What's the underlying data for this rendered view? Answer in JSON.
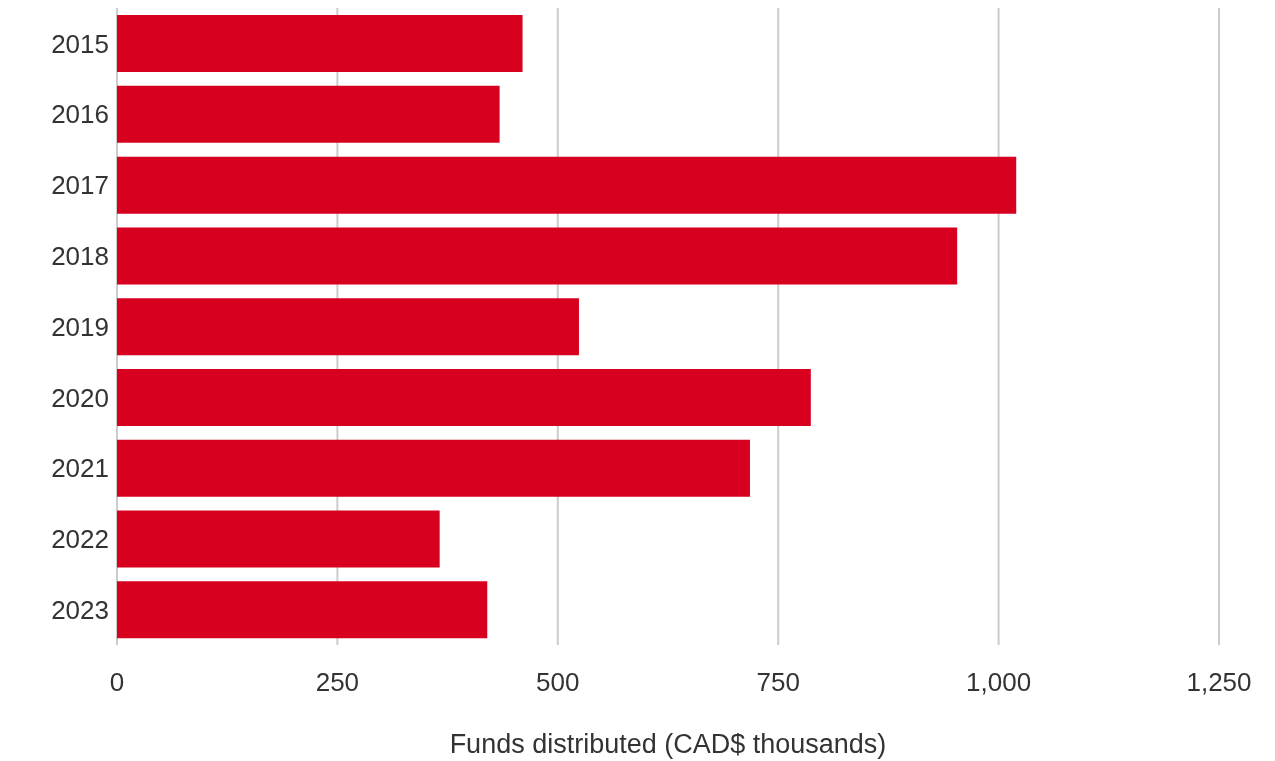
{
  "chart_data": {
    "type": "bar",
    "orientation": "horizontal",
    "xlabel": "Funds distributed (CAD$ thousands)",
    "categories": [
      "2015",
      "2016",
      "2017",
      "2018",
      "2019",
      "2020",
      "2021",
      "2022",
      "2023"
    ],
    "values": [
      460,
      434,
      1020,
      953,
      524,
      787,
      718,
      366,
      420
    ],
    "color": "#d7001e",
    "xlim": [
      0,
      1250
    ],
    "xticks": [
      0,
      250,
      500,
      {
        "value": 750,
        "label": "750"
      },
      {
        "value": 1000,
        "label": "1,000"
      },
      {
        "value": 1250,
        "label": "1,250"
      }
    ],
    "grid": "x",
    "legend": false
  }
}
